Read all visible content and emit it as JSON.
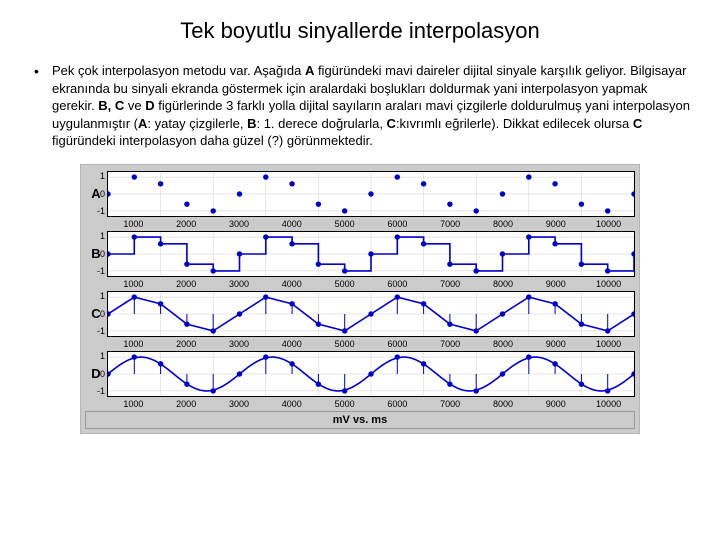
{
  "title": "Tek boyutlu sinyallerde interpolasyon",
  "paragraph_parts": {
    "p1": "Pek çok interpolasyon metodu var. Aşağıda ",
    "b1": "A",
    "p2": " figüründeki mavi daireler dijital sinyale karşılık geliyor. Bilgisayar ekranında bu sinyali ekranda göstermek için aralardaki boşlukları doldurmak yani interpolasyon yapmak gerekir. ",
    "b2": "B, C",
    "p3": " ve ",
    "b3": "D",
    "p4": " figürlerinde 3 farklı yolla dijital sayıların araları mavi çizgilerle doldurulmuş yani interpolasyon uygulanmıştır (",
    "b4": "A",
    "p5": ": yatay çizgilerle, ",
    "b5": "B",
    "p6": ": 1. derece doğrularla, ",
    "b6": "C",
    "p7": ":kıvrımlı eğrilerle). Dikkat edilecek olursa ",
    "b7": "C",
    "p8": " figüründeki interpolasyon daha güzel (?) görünmektedir."
  },
  "figure": {
    "panels": [
      "A",
      "B",
      "C",
      "D"
    ],
    "xmin": 0,
    "xmax": 10000,
    "xticks": [
      "1000",
      "2000",
      "3000",
      "4000",
      "5000",
      "6000",
      "7000",
      "8000",
      "9000",
      "10000"
    ],
    "ymin": -1.3,
    "ymax": 1.3,
    "yticks": [
      {
        "v": 1,
        "l": "1"
      },
      {
        "v": 0,
        "l": "0"
      },
      {
        "v": -1,
        "l": "-1"
      }
    ],
    "samples_x": [
      0,
      500,
      1000,
      1500,
      2000,
      2500,
      3000,
      3500,
      4000,
      4500,
      5000,
      5500,
      6000,
      6500,
      7000,
      7500,
      8000,
      8500,
      9000,
      9500,
      10000
    ],
    "samples_y": [
      0,
      1,
      0.6,
      -0.6,
      -1,
      0,
      1,
      0.6,
      -0.6,
      -1,
      0,
      1,
      0.6,
      -0.6,
      -1,
      0,
      1,
      0.6,
      -0.6,
      -1,
      0
    ],
    "panelA_type": "scatter",
    "panelB_type": "step",
    "panelC_type": "line",
    "panelD_type": "smooth",
    "marker_color": "#0000cc",
    "marker_fill": "#0000cc",
    "line_color": "#0000cc",
    "line_width": 1.6,
    "marker_radius": 2.2,
    "grid_color": "#d0d0d0",
    "bg_color": "#cbcbcb",
    "axis_label": "mV  vs.  ms"
  }
}
